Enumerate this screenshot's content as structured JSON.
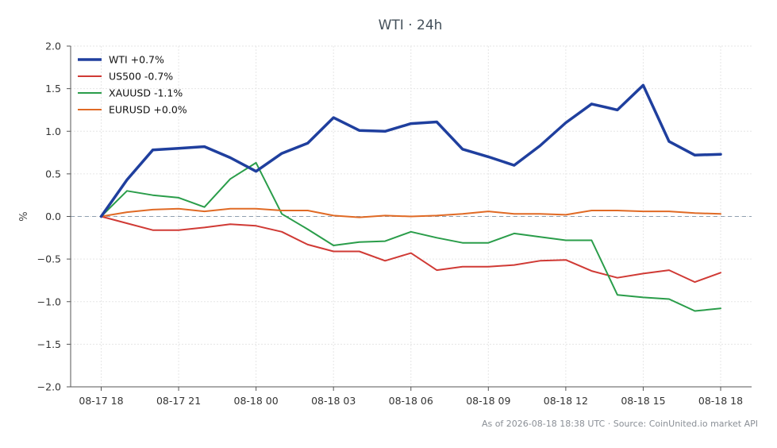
{
  "chart_data": {
    "type": "line",
    "title": "WTI · 24h",
    "ylabel": "%",
    "xlabel": "",
    "ylim": [
      -2.0,
      2.0
    ],
    "yticks": [
      -2.0,
      -1.5,
      -1.0,
      -0.5,
      0.0,
      0.5,
      1.0,
      1.5,
      2.0
    ],
    "ytick_labels": [
      "−2.0",
      "−1.5",
      "−1.0",
      "−0.5",
      "0.0",
      "0.5",
      "1.0",
      "1.5",
      "2.0"
    ],
    "x": [
      "08-17 18",
      "08-17 19",
      "08-17 20",
      "08-17 21",
      "08-17 22",
      "08-17 23",
      "08-18 00",
      "08-18 01",
      "08-18 02",
      "08-18 03",
      "08-18 04",
      "08-18 05",
      "08-18 06",
      "08-18 07",
      "08-18 08",
      "08-18 09",
      "08-18 10",
      "08-18 11",
      "08-18 12",
      "08-18 13",
      "08-18 14",
      "08-18 15",
      "08-18 16",
      "08-18 17",
      "08-18 18"
    ],
    "xticks": [
      "08-17 18",
      "08-17 21",
      "08-18 00",
      "08-18 03",
      "08-18 06",
      "08-18 09",
      "08-18 12",
      "08-18 15",
      "08-18 18"
    ],
    "grid": true,
    "legend_position": "top-left",
    "zero_line": true,
    "series": [
      {
        "name": "WTI +0.7%",
        "color": "#1f3f9e",
        "emphasis": true,
        "values": [
          0.0,
          0.43,
          0.78,
          0.8,
          0.82,
          0.69,
          0.53,
          0.74,
          0.86,
          1.16,
          1.01,
          1.0,
          1.09,
          1.11,
          0.79,
          0.7,
          0.6,
          0.83,
          1.1,
          1.32,
          1.25,
          1.54,
          0.88,
          0.72,
          0.73
        ]
      },
      {
        "name": "US500 -0.7%",
        "color": "#d03a35",
        "values": [
          0.0,
          -0.08,
          -0.16,
          -0.16,
          -0.13,
          -0.09,
          -0.11,
          -0.18,
          -0.33,
          -0.41,
          -0.41,
          -0.52,
          -0.43,
          -0.63,
          -0.59,
          -0.59,
          -0.57,
          -0.52,
          -0.51,
          -0.64,
          -0.72,
          -0.67,
          -0.63,
          -0.77,
          -0.66
        ]
      },
      {
        "name": "XAUUSD -1.1%",
        "color": "#2a9d4a",
        "values": [
          0.0,
          0.3,
          0.25,
          0.22,
          0.11,
          0.44,
          0.63,
          0.03,
          -0.15,
          -0.34,
          -0.3,
          -0.29,
          -0.18,
          -0.25,
          -0.31,
          -0.31,
          -0.2,
          -0.24,
          -0.28,
          -0.28,
          -0.92,
          -0.95,
          -0.97,
          -1.11,
          -1.08
        ]
      },
      {
        "name": "EURUSD +0.0%",
        "color": "#e06a25",
        "values": [
          0.0,
          0.05,
          0.08,
          0.09,
          0.06,
          0.09,
          0.09,
          0.07,
          0.07,
          0.01,
          -0.01,
          0.01,
          0.0,
          0.01,
          0.03,
          0.06,
          0.03,
          0.03,
          0.02,
          0.07,
          0.07,
          0.06,
          0.06,
          0.04,
          0.03
        ]
      }
    ],
    "footer": "As of 2026-08-18 18:38 UTC · Source: CoinUnited.io market API"
  }
}
